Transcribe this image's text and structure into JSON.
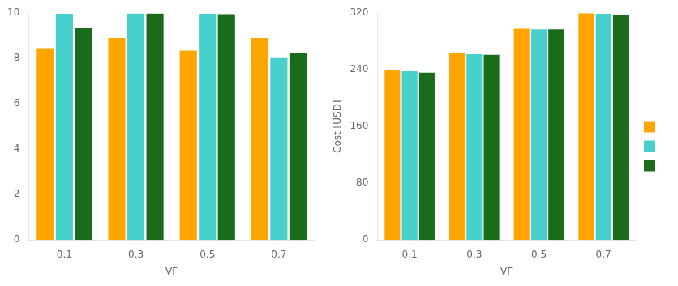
{
  "chart_data": [
    {
      "type": "bar",
      "categories": [
        "0.1",
        "0.3",
        "0.5",
        "0.7"
      ],
      "xlabel": "VF",
      "ylim": [
        0,
        10
      ],
      "yticks": [
        0,
        2,
        4,
        6,
        8,
        10
      ],
      "grid": false,
      "series": [
        {
          "color": "#FFA500",
          "values": [
            8.45,
            8.9,
            8.35,
            8.9
          ]
        },
        {
          "color": "#48D1CC",
          "values": [
            9.97,
            9.98,
            9.97,
            8.05
          ]
        },
        {
          "color": "#1A6B1A",
          "values": [
            9.35,
            9.98,
            9.95,
            8.25
          ]
        }
      ]
    },
    {
      "type": "bar",
      "categories": [
        "0.1",
        "0.3",
        "0.5",
        "0.7"
      ],
      "xlabel": "VF",
      "ylabel": "Cost [USD]",
      "ylim": [
        0,
        320
      ],
      "yticks": [
        0,
        80,
        160,
        240,
        320
      ],
      "grid": false,
      "legend": "right",
      "series": [
        {
          "color": "#FFA500",
          "values": [
            240,
            263,
            298,
            320
          ]
        },
        {
          "color": "#48D1CC",
          "values": [
            238,
            262,
            297,
            319
          ]
        },
        {
          "color": "#1A6B1A",
          "values": [
            236,
            261,
            297,
            318
          ]
        }
      ]
    }
  ]
}
